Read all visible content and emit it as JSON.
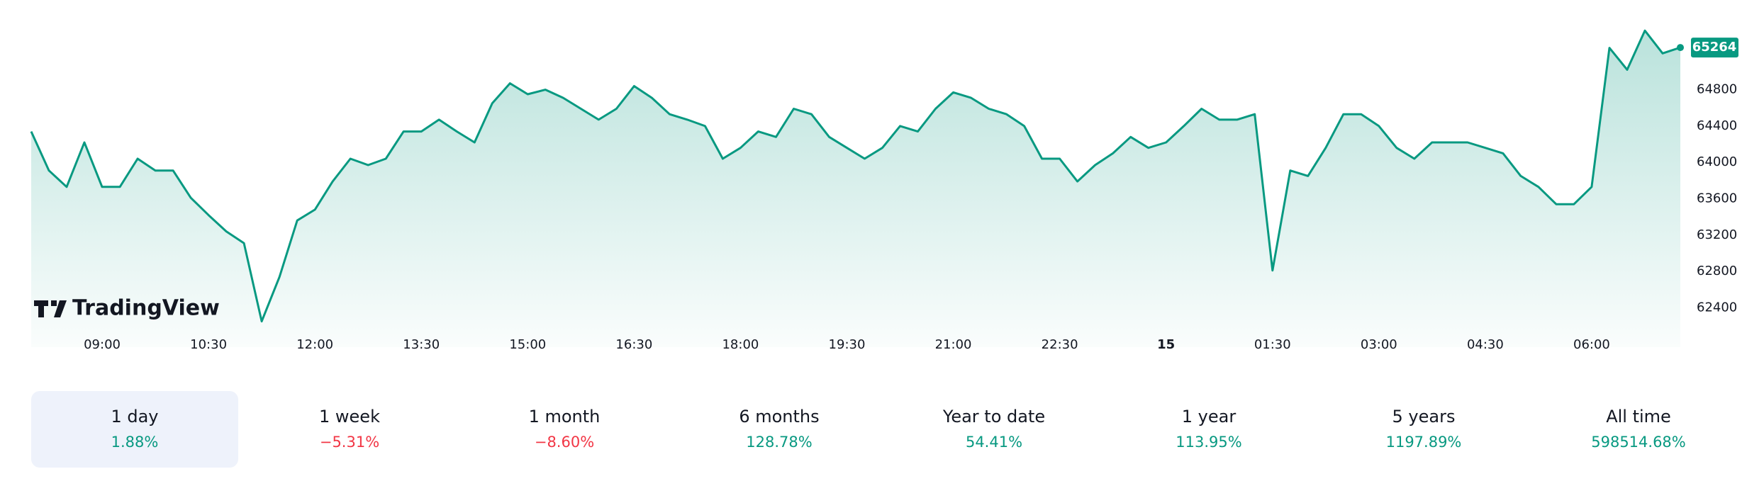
{
  "chart_data": {
    "type": "area",
    "logo": "TradingView",
    "categories": [
      null,
      null,
      null,
      null,
      "09:00",
      null,
      null,
      null,
      null,
      null,
      "10:30",
      null,
      null,
      null,
      null,
      null,
      "12:00",
      null,
      null,
      null,
      null,
      null,
      "13:30",
      null,
      null,
      null,
      null,
      null,
      "15:00",
      null,
      null,
      null,
      null,
      null,
      "16:30",
      null,
      null,
      null,
      null,
      null,
      "18:00",
      null,
      null,
      null,
      null,
      null,
      "19:30",
      null,
      null,
      null,
      null,
      null,
      "21:00",
      null,
      null,
      null,
      null,
      null,
      "22:30",
      null,
      null,
      null,
      null,
      null,
      "15",
      null,
      null,
      null,
      null,
      null,
      "01:30",
      null,
      null,
      null,
      null,
      null,
      "03:00",
      null,
      null,
      null,
      null,
      null,
      "04:30",
      null,
      null,
      null,
      null,
      null,
      "06:00",
      null,
      null,
      null,
      null,
      null
    ],
    "series": [
      {
        "color": "#089981",
        "values": [
          64340,
          63910,
          63730,
          64220,
          63730,
          63730,
          64040,
          63910,
          63910,
          63610,
          63420,
          63240,
          63110,
          62250,
          62740,
          63360,
          63480,
          63790,
          64040,
          63970,
          64040,
          64340,
          64340,
          64470,
          64340,
          64220,
          64650,
          64870,
          64750,
          64800,
          64710,
          64590,
          64470,
          64590,
          64840,
          64710,
          64530,
          64470,
          64400,
          64040,
          64160,
          64340,
          64280,
          64590,
          64530,
          64280,
          64160,
          64040,
          64160,
          64400,
          64340,
          64590,
          64770,
          64710,
          64590,
          64530,
          64400,
          64040,
          64040,
          63790,
          63970,
          64100,
          64280,
          64160,
          64220,
          64400,
          64590,
          64470,
          64470,
          64530,
          62810,
          63910,
          63850,
          64160,
          64530,
          64530,
          64400,
          64160,
          64040,
          64220,
          64220,
          64220,
          64160,
          64100,
          63850,
          63730,
          63540,
          63540,
          63730,
          65260,
          65020,
          65450,
          65200,
          65264
        ]
      }
    ],
    "ylim": [
      62200,
      65600
    ],
    "yticks": [
      62400,
      62800,
      63200,
      63600,
      64000,
      64400,
      64800
    ]
  },
  "periods": {
    "selected": 0,
    "items": [
      {
        "label": "1 day",
        "change": "1.88%"
      },
      {
        "label": "1 week",
        "change": "−5.31%"
      },
      {
        "label": "1 month",
        "change": "−8.60%"
      },
      {
        "label": "6 months",
        "change": "128.78%"
      },
      {
        "label": "Year to date",
        "change": "54.41%"
      },
      {
        "label": "1 year",
        "change": "113.95%"
      },
      {
        "label": "5 years",
        "change": "1197.89%"
      },
      {
        "label": "All time",
        "change": "598514.68%"
      }
    ]
  }
}
